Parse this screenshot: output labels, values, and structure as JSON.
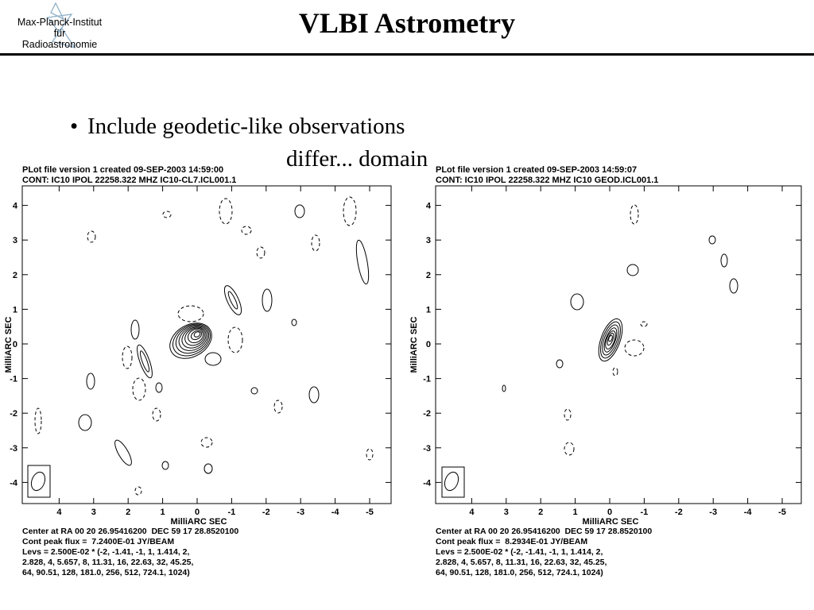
{
  "header": {
    "logo_lines": [
      "Max-Planck-Institut",
      "für",
      "Radioastronomie"
    ],
    "title": "VLBI Astrometry"
  },
  "content": {
    "bullet": "Include geodetic-like observations",
    "bullet_partial": "differ... domain"
  },
  "plots": [
    {
      "header_line1": "PLot file version 1  created 09-SEP-2003 14:59:00",
      "header_line2": "CONT: IC10  IPOL  22258.322 MHZ  IC10-CL7.ICL001.1",
      "ylabel": "MilliARC SEC",
      "xlabel": "MilliARC SEC",
      "x_ticks": [
        "4",
        "3",
        "2",
        "1",
        "0",
        "-1",
        "-2",
        "-3",
        "-4",
        "-5"
      ],
      "y_ticks": [
        "4",
        "3",
        "2",
        "1",
        "0",
        "-1",
        "-2",
        "-3",
        "-4"
      ],
      "footer_lines": [
        "Center at RA 00 20 26.95416200  DEC 59 17 28.8520100",
        "Cont peak flux =  7.2400E-01 JY/BEAM",
        "Levs = 2.500E-02 * (-2, -1.41, -1, 1, 1.414, 2,",
        "2.828, 4, 5.657, 8, 11.31, 16, 22.63, 32, 45.25,",
        "64, 90.51, 128, 181.0, 256, 512, 724.1, 1024)"
      ]
    },
    {
      "header_line1": "PLot file version 1  created 09-SEP-2003 14:59:07",
      "header_line2": "CONT: IC10  IPOL  22258.322 MHZ  IC10 GEOD.ICL001.1",
      "ylabel": "MilliARC SEC",
      "xlabel": "MilliARC SEC",
      "x_ticks": [
        "4",
        "3",
        "2",
        "1",
        "0",
        "-1",
        "-2",
        "-3",
        "-4",
        "-5"
      ],
      "y_ticks": [
        "4",
        "3",
        "2",
        "1",
        "0",
        "-1",
        "-2",
        "-3",
        "-4"
      ],
      "footer_lines": [
        "Center at RA 00 20 26.95416200  DEC 59 17 28.8520100",
        "Cont peak flux =  8.2934E-01 JY/BEAM",
        "Levs = 2.500E-02 * (-2, -1.41, -1, 1, 1.414, 2,",
        "2.828, 4, 5.657, 8, 11.31, 16, 22.63, 32, 45.25,",
        "64, 90.51, 128, 181.0, 256, 512, 724.1, 1024)"
      ]
    }
  ]
}
